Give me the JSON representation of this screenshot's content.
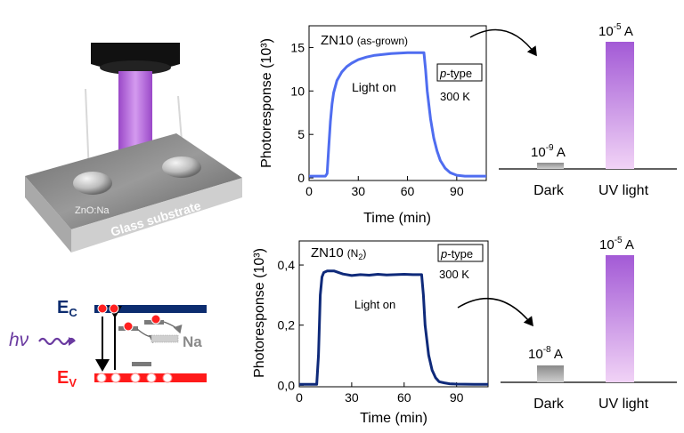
{
  "colors": {
    "top_curve": "#4f6df0",
    "bottom_curve": "#0f2a7a",
    "bar_uv_top": "#a35ad6",
    "bar_uv_bottom": "#f1d3f6",
    "bar_dark": "#a0a0a0",
    "band_conduction": "#0c2c6f",
    "band_valence": "#ff1a1a",
    "electron": "#ff2020",
    "hv_color": "#6a3aa0",
    "beam": "#b060d8"
  },
  "illustration": {
    "sample_label": "ZnO:Na",
    "substrate_label": "Glass substrate"
  },
  "band_diagram": {
    "ec_letter": "E",
    "ec_sub": "C",
    "ev_letter": "E",
    "ev_sub": "V",
    "hv_label": "hν",
    "dopant_label": "Na"
  },
  "chart_data": [
    {
      "type": "line",
      "title": "ZN10",
      "title_suffix": "(as-grown)",
      "xlabel": "Time (min)",
      "ylabel": "Photoresponse (10³)",
      "xlim": [
        0,
        108
      ],
      "ylim": [
        -0.3,
        17.5
      ],
      "xticks": [
        0,
        30,
        60,
        90
      ],
      "yticks": [
        0,
        5,
        10,
        15
      ],
      "ytick_labels": [
        "0",
        "5",
        "10",
        "15"
      ],
      "annotation": "Light on",
      "box_italic": "p",
      "box_text": "-type",
      "temperature": "300 K",
      "series": [
        {
          "x": [
            0,
            10,
            11,
            12,
            13,
            14,
            15,
            17,
            20,
            23,
            26,
            30,
            35,
            40,
            45,
            50,
            55,
            60,
            65,
            68,
            70,
            71,
            72,
            74,
            76,
            78,
            80,
            83,
            86,
            90,
            95,
            100,
            108
          ],
          "y": [
            0.2,
            0.2,
            0.5,
            3.5,
            6.5,
            8.5,
            9.8,
            11.2,
            12.2,
            12.8,
            13.2,
            13.6,
            13.9,
            14.1,
            14.2,
            14.3,
            14.35,
            14.4,
            14.4,
            14.4,
            14.4,
            12.5,
            10.0,
            6.8,
            4.6,
            3.1,
            2.0,
            1.1,
            0.6,
            0.3,
            0.2,
            0.2,
            0.2
          ]
        }
      ]
    },
    {
      "type": "line",
      "title": "ZN10",
      "title_suffix": "(N",
      "title_suffix_sub": "2",
      "title_suffix_end": ")",
      "xlabel": "Time (min)",
      "ylabel": "Photoresponse (10³)",
      "xlim": [
        0,
        108
      ],
      "ylim": [
        -0.005,
        0.48
      ],
      "xticks": [
        0,
        30,
        60,
        90
      ],
      "yticks": [
        0,
        0.2,
        0.4
      ],
      "ytick_labels": [
        "0,0",
        "0,2",
        "0,4"
      ],
      "annotation": "Light on",
      "box_italic": "p",
      "box_text": "-type",
      "temperature": "300 K",
      "series": [
        {
          "x": [
            0,
            10,
            11,
            12,
            13,
            14,
            16,
            20,
            25,
            30,
            35,
            40,
            45,
            50,
            55,
            60,
            65,
            70,
            71,
            72,
            74,
            76,
            78,
            80,
            83,
            86,
            90,
            100,
            108
          ],
          "y": [
            0.003,
            0.003,
            0.1,
            0.3,
            0.36,
            0.375,
            0.38,
            0.38,
            0.37,
            0.365,
            0.368,
            0.366,
            0.369,
            0.367,
            0.368,
            0.369,
            0.368,
            0.368,
            0.3,
            0.2,
            0.1,
            0.05,
            0.025,
            0.012,
            0.008,
            0.005,
            0.004,
            0.003,
            0.003
          ]
        }
      ]
    },
    {
      "type": "bar",
      "categories": [
        "Dark",
        "UV light"
      ],
      "values": [
        1e-09,
        1e-05
      ],
      "yscale": "log",
      "data_labels": [
        {
          "base": "10",
          "exp": "-9",
          "unit": " A"
        },
        {
          "base": "10",
          "exp": "-5",
          "unit": " A"
        }
      ]
    },
    {
      "type": "bar",
      "categories": [
        "Dark",
        "UV light"
      ],
      "values": [
        1e-08,
        1e-05
      ],
      "yscale": "log",
      "data_labels": [
        {
          "base": "10",
          "exp": "-8",
          "unit": " A"
        },
        {
          "base": "10",
          "exp": "-5",
          "unit": " A"
        }
      ]
    }
  ]
}
